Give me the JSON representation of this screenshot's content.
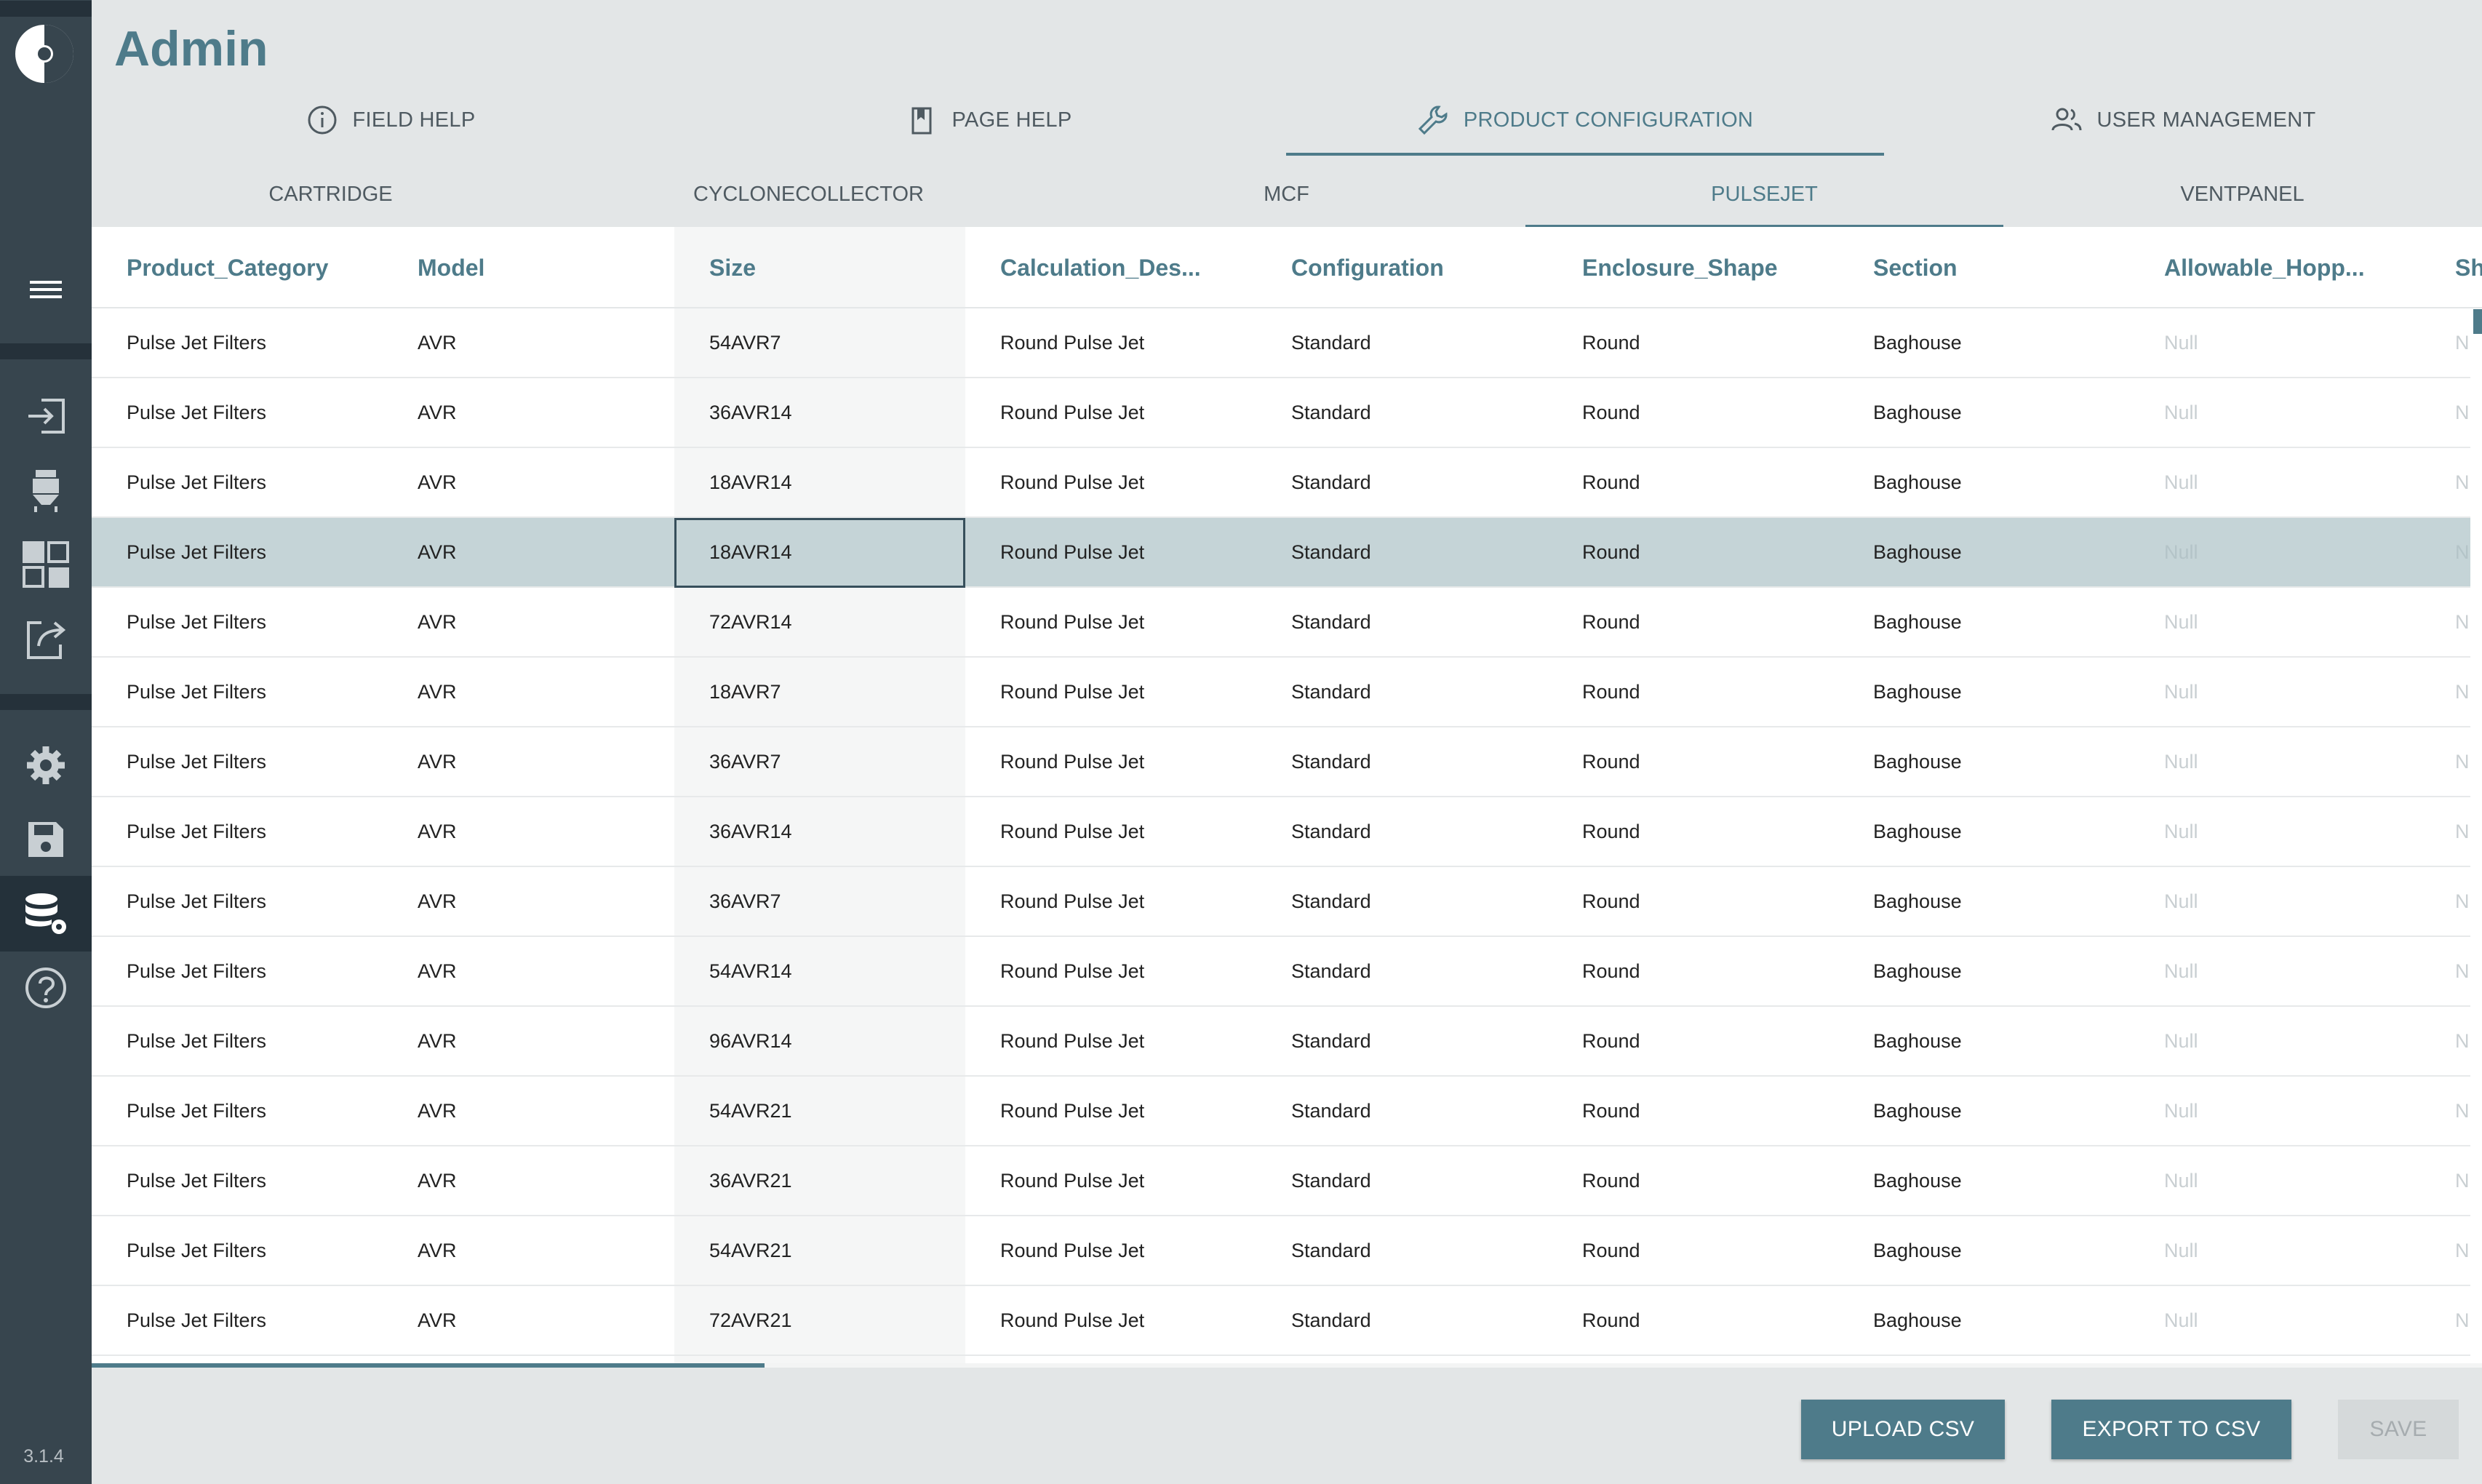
{
  "app": {
    "version": "3.1.4",
    "page_title": "Admin"
  },
  "sidebar": {
    "items": [
      {
        "name": "menu",
        "icon": "hamburger-menu-icon"
      },
      {
        "name": "login",
        "icon": "login-arrow-icon"
      },
      {
        "name": "baghouse",
        "icon": "baghouse-filter-icon"
      },
      {
        "name": "dashboard",
        "icon": "dashboard-grid-icon"
      },
      {
        "name": "export",
        "icon": "share-export-icon"
      },
      {
        "name": "settings",
        "icon": "gear-icon"
      },
      {
        "name": "save",
        "icon": "floppy-disk-icon"
      },
      {
        "name": "database",
        "icon": "database-settings-icon",
        "active": true
      },
      {
        "name": "help",
        "icon": "help-circle-icon"
      }
    ]
  },
  "primary_tabs": [
    {
      "label": "FIELD HELP",
      "icon": "info-circle-icon"
    },
    {
      "label": "PAGE HELP",
      "icon": "bookmark-icon"
    },
    {
      "label": "PRODUCT CONFIGURATION",
      "icon": "wrench-icon",
      "active": true
    },
    {
      "label": "USER MANAGEMENT",
      "icon": "users-icon"
    }
  ],
  "secondary_tabs": [
    {
      "label": "CARTRIDGE"
    },
    {
      "label": "CYCLONECOLLECTOR"
    },
    {
      "label": "MCF"
    },
    {
      "label": "PULSEJET",
      "active": true
    },
    {
      "label": "VENTPANEL"
    }
  ],
  "grid": {
    "columns": [
      "Product_Category",
      "Model",
      "Size",
      "Calculation_Des...",
      "Configuration",
      "Enclosure_Shape",
      "Section",
      "Allowable_Hopp...",
      "Sh"
    ],
    "selected_row": 3,
    "rows": [
      [
        "Pulse Jet Filters",
        "AVR",
        "54AVR7",
        "Round Pulse Jet",
        "Standard",
        "Round",
        "Baghouse",
        "Null",
        "N"
      ],
      [
        "Pulse Jet Filters",
        "AVR",
        "36AVR14",
        "Round Pulse Jet",
        "Standard",
        "Round",
        "Baghouse",
        "Null",
        "N"
      ],
      [
        "Pulse Jet Filters",
        "AVR",
        "18AVR14",
        "Round Pulse Jet",
        "Standard",
        "Round",
        "Baghouse",
        "Null",
        "N"
      ],
      [
        "Pulse Jet Filters",
        "AVR",
        "18AVR14",
        "Round Pulse Jet",
        "Standard",
        "Round",
        "Baghouse",
        "Null",
        "N"
      ],
      [
        "Pulse Jet Filters",
        "AVR",
        "72AVR14",
        "Round Pulse Jet",
        "Standard",
        "Round",
        "Baghouse",
        "Null",
        "N"
      ],
      [
        "Pulse Jet Filters",
        "AVR",
        "18AVR7",
        "Round Pulse Jet",
        "Standard",
        "Round",
        "Baghouse",
        "Null",
        "N"
      ],
      [
        "Pulse Jet Filters",
        "AVR",
        "36AVR7",
        "Round Pulse Jet",
        "Standard",
        "Round",
        "Baghouse",
        "Null",
        "N"
      ],
      [
        "Pulse Jet Filters",
        "AVR",
        "36AVR14",
        "Round Pulse Jet",
        "Standard",
        "Round",
        "Baghouse",
        "Null",
        "N"
      ],
      [
        "Pulse Jet Filters",
        "AVR",
        "36AVR7",
        "Round Pulse Jet",
        "Standard",
        "Round",
        "Baghouse",
        "Null",
        "N"
      ],
      [
        "Pulse Jet Filters",
        "AVR",
        "54AVR14",
        "Round Pulse Jet",
        "Standard",
        "Round",
        "Baghouse",
        "Null",
        "N"
      ],
      [
        "Pulse Jet Filters",
        "AVR",
        "96AVR14",
        "Round Pulse Jet",
        "Standard",
        "Round",
        "Baghouse",
        "Null",
        "N"
      ],
      [
        "Pulse Jet Filters",
        "AVR",
        "54AVR21",
        "Round Pulse Jet",
        "Standard",
        "Round",
        "Baghouse",
        "Null",
        "N"
      ],
      [
        "Pulse Jet Filters",
        "AVR",
        "36AVR21",
        "Round Pulse Jet",
        "Standard",
        "Round",
        "Baghouse",
        "Null",
        "N"
      ],
      [
        "Pulse Jet Filters",
        "AVR",
        "54AVR21",
        "Round Pulse Jet",
        "Standard",
        "Round",
        "Baghouse",
        "Null",
        "N"
      ],
      [
        "Pulse Jet Filters",
        "AVR",
        "72AVR21",
        "Round Pulse Jet",
        "Standard",
        "Round",
        "Baghouse",
        "Null",
        "N"
      ]
    ]
  },
  "footer": {
    "upload_label": "UPLOAD CSV",
    "export_label": "EXPORT TO CSV",
    "save_label": "SAVE"
  },
  "colors": {
    "accent": "#4e7b8a",
    "sidebar": "#37454e",
    "selected_row": "#c5d4d7"
  }
}
